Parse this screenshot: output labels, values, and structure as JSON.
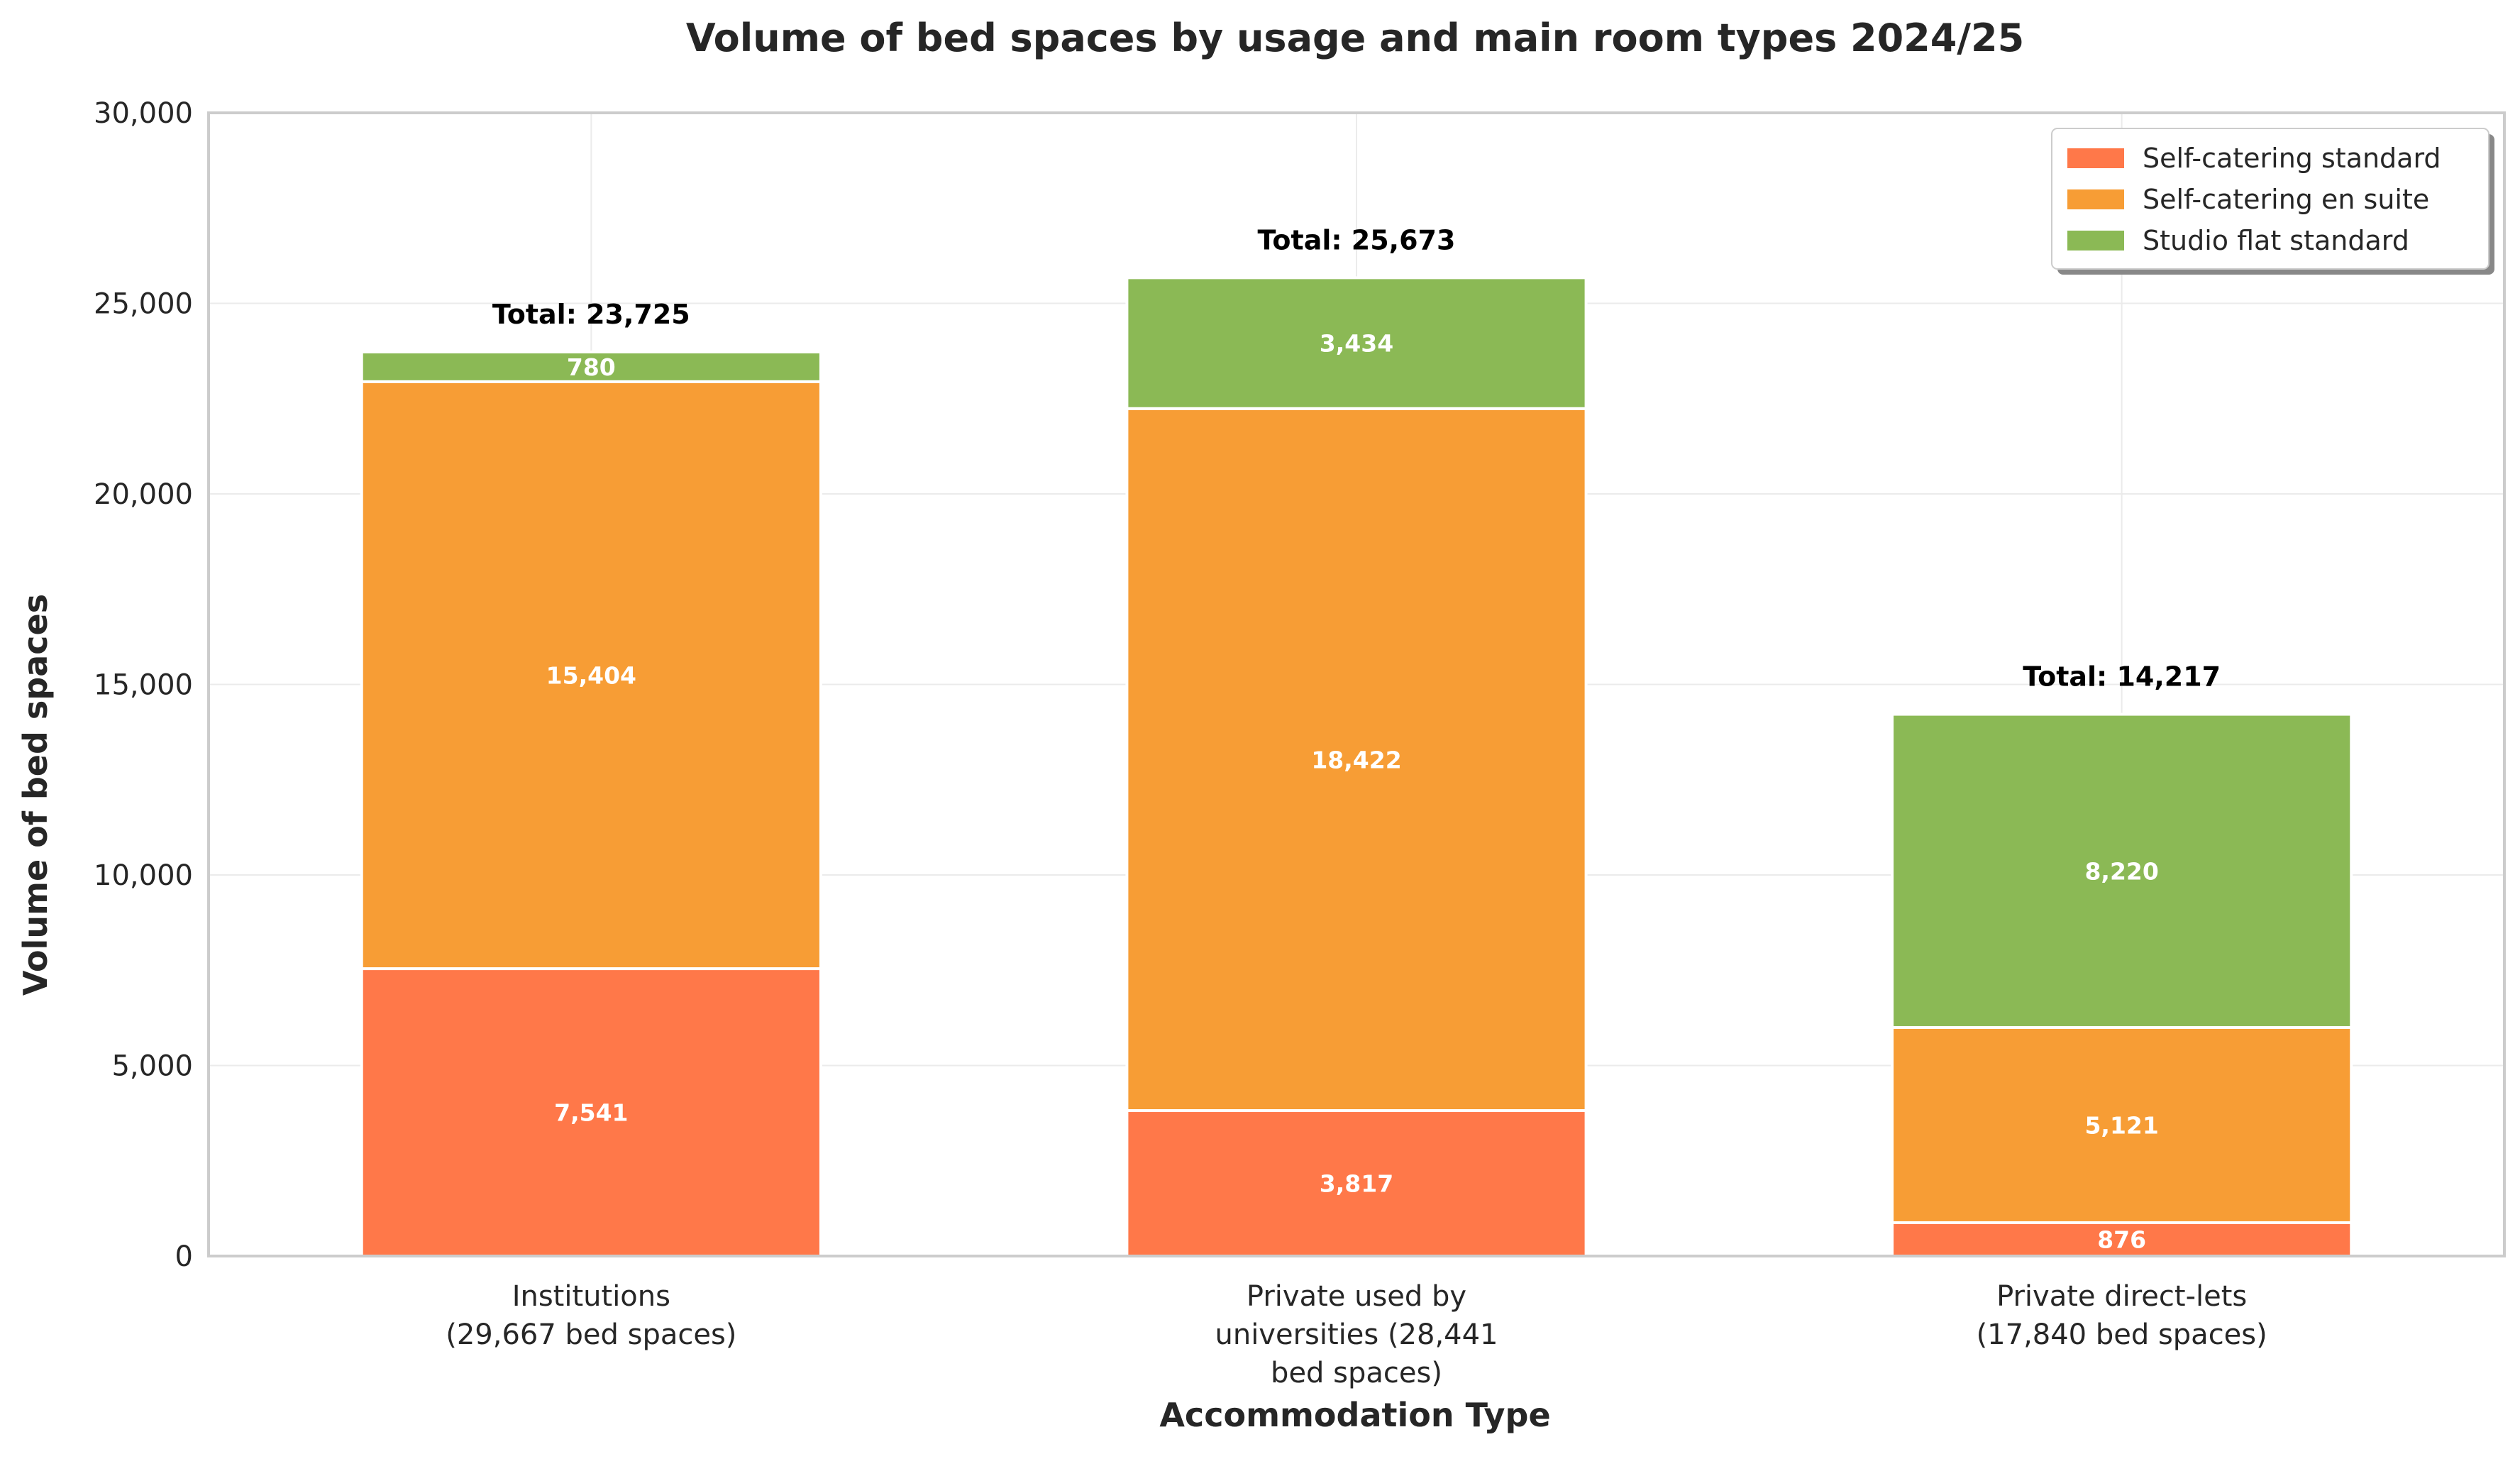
{
  "chart_data": {
    "type": "bar",
    "stacked": true,
    "title": "Volume of bed spaces by usage and main room types 2024/25",
    "xlabel": "Accommodation Type",
    "ylabel": "Volume of bed spaces",
    "ylim": [
      0,
      30000
    ],
    "yticks": [
      0,
      5000,
      10000,
      15000,
      20000,
      25000,
      30000
    ],
    "ytick_labels": [
      "0",
      "5,000",
      "10,000",
      "15,000",
      "20,000",
      "25,000",
      "30,000"
    ],
    "grid": true,
    "legend_position": "top-right",
    "categories": [
      [
        "Institutions",
        "(29,667 bed spaces)"
      ],
      [
        "Private used by",
        "universities (28,441",
        "bed spaces)"
      ],
      [
        "Private direct-lets",
        "(17,840 bed spaces)"
      ]
    ],
    "series": [
      {
        "name": "Self-catering standard",
        "color": "#ff7849",
        "values": [
          7541,
          3817,
          876
        ],
        "labels": [
          "7,541",
          "3,817",
          "876"
        ]
      },
      {
        "name": "Self-catering en suite",
        "color": "#f79d35",
        "values": [
          15404,
          18422,
          5121
        ],
        "labels": [
          "15,404",
          "18,422",
          "5,121"
        ]
      },
      {
        "name": "Studio flat standard",
        "color": "#8bb955",
        "values": [
          780,
          3434,
          8220
        ],
        "labels": [
          "780",
          "3,434",
          "8,220"
        ]
      }
    ],
    "totals": [
      23725,
      25673,
      14217
    ],
    "total_labels": [
      "Total: 23,725",
      "Total: 25,673",
      "Total: 14,217"
    ]
  }
}
